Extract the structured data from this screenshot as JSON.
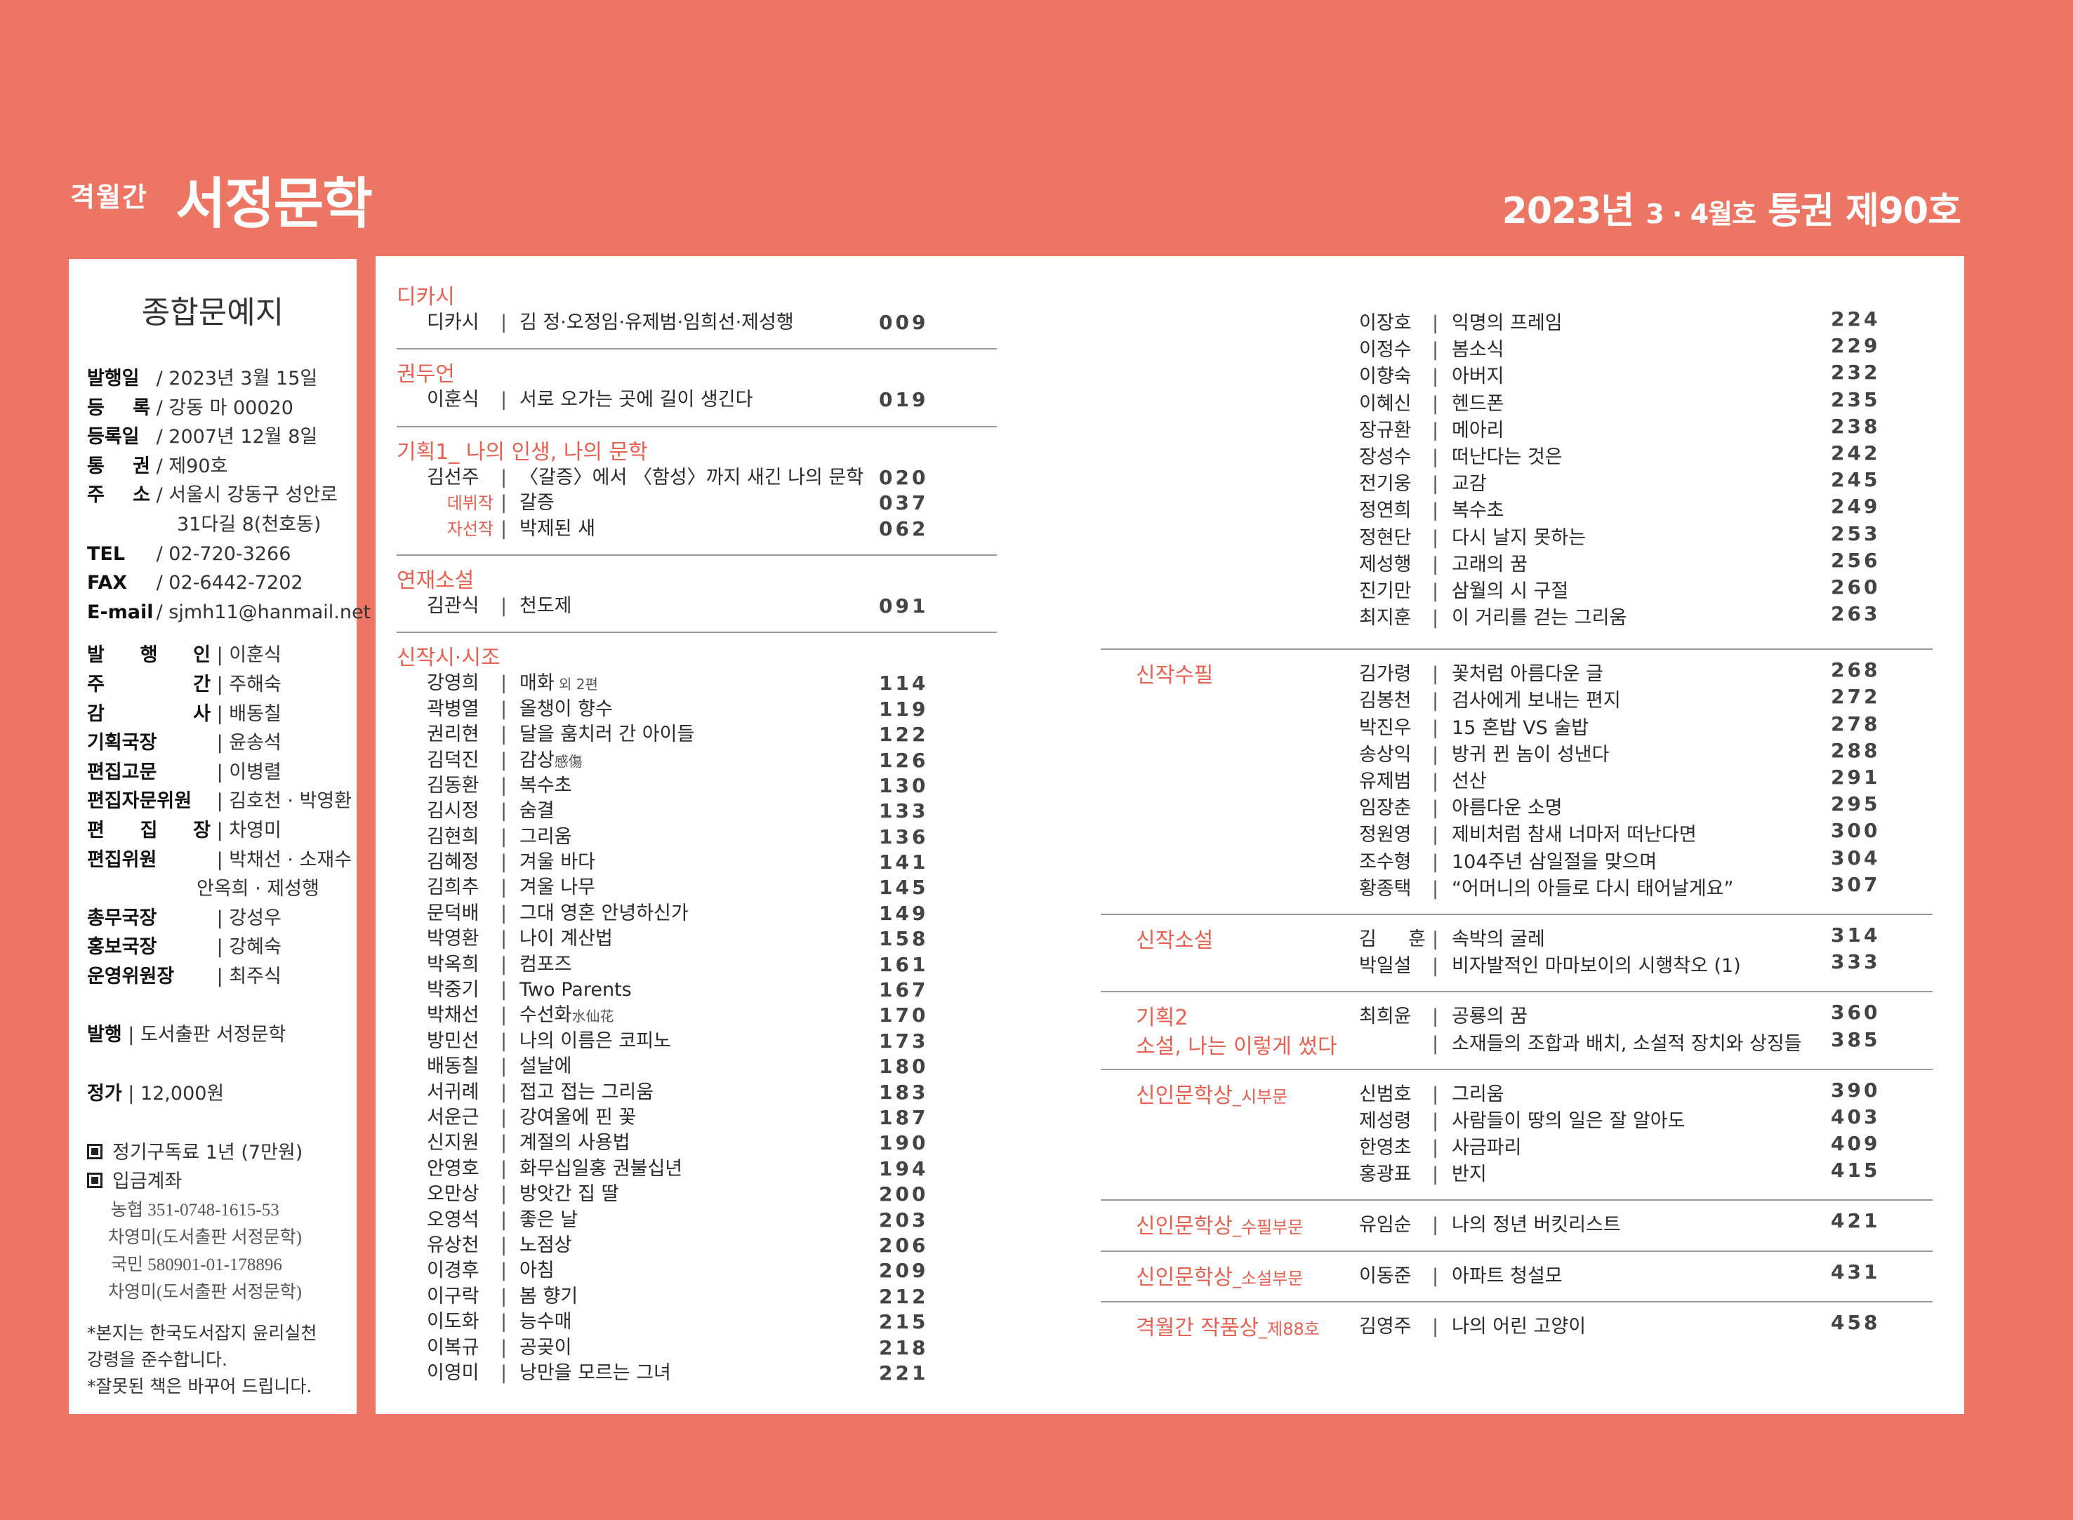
{
  "masthead": {
    "sub": "격월간",
    "title": "서정문학",
    "issue_main": "2023년",
    "issue_small": "3 · 4월호",
    "issue_rest": "통권 제90호"
  },
  "colors": {
    "background": "#ec7563",
    "accent": "#e8604f"
  },
  "left": {
    "title": "종합문예지",
    "info": [
      {
        "label": "발행일",
        "sep": "/",
        "value": "2023년 3월 15일"
      },
      {
        "label": "등 록",
        "sep": "/",
        "value": "강동 마 00020"
      },
      {
        "label": "등록일",
        "sep": "/",
        "value": "2007년 12월 8일"
      },
      {
        "label": "통 권",
        "sep": "/",
        "value": "제90호"
      },
      {
        "label": "주 소",
        "sep": "/",
        "value": "서울시 강동구 성안로",
        "cont": "31다길 8(천호동)"
      },
      {
        "label": "TEL",
        "sep": "/",
        "value": "02-720-3266"
      },
      {
        "label": "FAX",
        "sep": "/",
        "value": "02-6442-7202"
      },
      {
        "label": "E-mail",
        "sep": "/",
        "value": "sjmh11@hanmail.net"
      }
    ],
    "staff": [
      {
        "label": "발 행 인",
        "value": "이훈식"
      },
      {
        "label": "주 간",
        "value": "주해숙"
      },
      {
        "label": "감 사",
        "value": "배동칠"
      },
      {
        "label": "기획국장",
        "value": "윤송석"
      },
      {
        "label": "편집고문",
        "value": "이병렬"
      },
      {
        "label": "편집자문위원",
        "value": "김호천 · 박영환"
      },
      {
        "label": "편 집 장",
        "value": "차영미"
      },
      {
        "label": "편집위원",
        "value": "박채선 · 소재수",
        "cont": "안옥희 · 제성행"
      },
      {
        "label": "총무국장",
        "value": "강성우"
      },
      {
        "label": "홍보국장",
        "value": "강혜숙"
      },
      {
        "label": "운영위원장",
        "value": "최주식"
      }
    ],
    "publisher": {
      "label": "발행",
      "value": "도서출판 서정문학"
    },
    "price": {
      "label": "정가",
      "value": "12,000원"
    },
    "subscription": "정기구독료 1년 (7만원)",
    "account_label": "입금계좌",
    "accounts": [
      {
        "bank": "농협 351-0748-1615-53",
        "holder": "차영미(도서출판 서정문학)"
      },
      {
        "bank": "국민 580901-01-178896",
        "holder": "차영미(도서출판 서정문학)"
      }
    ],
    "notes": [
      "*본지는 한국도서잡지 윤리실천",
      " 강령을 준수합니다.",
      "*잘못된 책은 바꾸어 드립니다."
    ]
  },
  "middle": [
    {
      "title": "디카시",
      "rows": [
        {
          "name": "디카시",
          "title": "김 정·오정임·유제범·임희선·제성행",
          "page": "009"
        }
      ]
    },
    {
      "title": "권두언",
      "rows": [
        {
          "name": "이훈식",
          "title": "서로 오가는 곳에 길이 생긴다",
          "page": "019"
        }
      ]
    },
    {
      "title": "기획1_ 나의 인생, 나의 문학",
      "rows": [
        {
          "name": "김선주",
          "title": "〈갈증〉에서 〈함성〉까지 새긴 나의 문학",
          "page": "020"
        },
        {
          "name": "데뷔작",
          "accent": true,
          "title": "갈증",
          "page": "037"
        },
        {
          "name": "자선작",
          "accent": true,
          "title": "박제된 새",
          "page": "062"
        }
      ]
    },
    {
      "title": "연재소설",
      "rows": [
        {
          "name": "김관식",
          "title": "천도제",
          "page": "091"
        }
      ]
    },
    {
      "title": "신작시·시조",
      "rows": [
        {
          "name": "강영희",
          "title": "매화",
          "suffix": " 외 2편",
          "page": "114"
        },
        {
          "name": "곽병열",
          "title": "올챙이 향수",
          "page": "119"
        },
        {
          "name": "권리현",
          "title": "달을 훔치러 간 아이들",
          "page": "122"
        },
        {
          "name": "김덕진",
          "title": "감상",
          "suffix": "感傷",
          "page": "126"
        },
        {
          "name": "김동환",
          "title": "복수초",
          "page": "130"
        },
        {
          "name": "김시정",
          "title": "숨결",
          "page": "133"
        },
        {
          "name": "김현희",
          "title": "그리움",
          "page": "136"
        },
        {
          "name": "김혜정",
          "title": "겨울 바다",
          "page": "141"
        },
        {
          "name": "김희추",
          "title": "겨울 나무",
          "page": "145"
        },
        {
          "name": "문덕배",
          "title": "그대 영혼 안녕하신가",
          "page": "149"
        },
        {
          "name": "박영환",
          "title": "나이 계산법",
          "page": "158"
        },
        {
          "name": "박옥희",
          "title": "컴포즈",
          "page": "161"
        },
        {
          "name": "박중기",
          "title": "Two Parents",
          "page": "167"
        },
        {
          "name": "박채선",
          "title": "수선화",
          "suffix": "水仙花",
          "page": "170"
        },
        {
          "name": "방민선",
          "title": "나의 이름은 코피노",
          "page": "173"
        },
        {
          "name": "배동칠",
          "title": "설날에",
          "page": "180"
        },
        {
          "name": "서귀례",
          "title": "접고 접는 그리움",
          "page": "183"
        },
        {
          "name": "서운근",
          "title": "강여울에 핀 꽃",
          "page": "187"
        },
        {
          "name": "신지원",
          "title": "계절의 사용법",
          "page": "190"
        },
        {
          "name": "안영호",
          "title": "화무십일홍 권불십년",
          "page": "194"
        },
        {
          "name": "오만상",
          "title": "방앗간 집 딸",
          "page": "200"
        },
        {
          "name": "오영석",
          "title": "좋은 날",
          "page": "203"
        },
        {
          "name": "유상천",
          "title": "노점상",
          "page": "206"
        },
        {
          "name": "이경후",
          "title": "아침",
          "page": "209"
        },
        {
          "name": "이구락",
          "title": "봄 향기",
          "page": "212"
        },
        {
          "name": "이도화",
          "title": "능수매",
          "page": "215"
        },
        {
          "name": "이복규",
          "title": "공곶이",
          "page": "218"
        },
        {
          "name": "이영미",
          "title": "낭만을 모르는 그녀",
          "page": "221"
        }
      ]
    }
  ],
  "right": [
    {
      "label": "",
      "rows": [
        {
          "name": "이장호",
          "title": "익명의 프레임",
          "page": "224"
        },
        {
          "name": "이정수",
          "title": "봄소식",
          "page": "229"
        },
        {
          "name": "이향숙",
          "title": "아버지",
          "page": "232"
        },
        {
          "name": "이혜신",
          "title": "헨드폰",
          "page": "235"
        },
        {
          "name": "장규환",
          "title": "메아리",
          "page": "238"
        },
        {
          "name": "장성수",
          "title": "떠난다는 것은",
          "page": "242"
        },
        {
          "name": "전기웅",
          "title": "교감",
          "page": "245"
        },
        {
          "name": "정연희",
          "title": "복수초",
          "page": "249"
        },
        {
          "name": "정현단",
          "title": "다시 날지 못하는",
          "page": "253"
        },
        {
          "name": "제성행",
          "title": "고래의 꿈",
          "page": "256"
        },
        {
          "name": "진기만",
          "title": "삼월의 시 구절",
          "page": "260"
        },
        {
          "name": "최지훈",
          "title": "이 거리를 걷는 그리움",
          "page": "263"
        }
      ]
    },
    {
      "label": "신작수필",
      "rows": [
        {
          "name": "김가령",
          "title": "꽃처럼 아름다운 글",
          "page": "268"
        },
        {
          "name": "김봉천",
          "title": "검사에게 보내는 편지",
          "page": "272"
        },
        {
          "name": "박진우",
          "title": "15 혼밥 VS 술밥",
          "page": "278"
        },
        {
          "name": "송상익",
          "title": "방귀 뀐 놈이 성낸다",
          "page": "288"
        },
        {
          "name": "유제범",
          "title": "선산",
          "page": "291"
        },
        {
          "name": "임장춘",
          "title": "아름다운 소명",
          "page": "295"
        },
        {
          "name": "정원영",
          "title": "제비처럼 참새 너마저 떠난다면",
          "page": "300"
        },
        {
          "name": "조수형",
          "title": "104주년 삼일절을 맞으며",
          "page": "304"
        },
        {
          "name": "황종택",
          "title": "“어머니의 아들로 다시 태어날게요”",
          "page": "307"
        }
      ]
    },
    {
      "label": "신작소설",
      "rows": [
        {
          "name": "김 훈",
          "title": "속박의 굴레",
          "page": "314"
        },
        {
          "name": "박일설",
          "title": "비자발적인 마마보이의 시행착오 (1)",
          "page": "333"
        }
      ]
    },
    {
      "label": "기획2",
      "label2": "소설, 나는 이렇게 썼다",
      "rows": [
        {
          "name": "최희윤",
          "title": "공룡의 꿈",
          "page": "360"
        },
        {
          "name": "",
          "title": "소재들의 조합과 배치, 소설적 장치와 상징들",
          "page": "385"
        }
      ]
    },
    {
      "label": "신인문학상",
      "sublabel": "_시부문",
      "rows": [
        {
          "name": "신범호",
          "title": "그리움",
          "page": "390"
        },
        {
          "name": "제성령",
          "title": "사람들이 땅의 일은 잘 알아도",
          "page": "403"
        },
        {
          "name": "한영초",
          "title": "사금파리",
          "page": "409"
        },
        {
          "name": "홍광표",
          "title": "반지",
          "page": "415"
        }
      ]
    },
    {
      "label": "신인문학상",
      "sublabel": "_수필부문",
      "rows": [
        {
          "name": "유임순",
          "title": "나의 정년 버킷리스트",
          "page": "421"
        }
      ]
    },
    {
      "label": "신인문학상",
      "sublabel": "_소설부문",
      "rows": [
        {
          "name": "이동준",
          "title": "아파트 청설모",
          "page": "431"
        }
      ]
    },
    {
      "label": "격월간 작품상",
      "sublabel": "_제88호",
      "rows": [
        {
          "name": "김영주",
          "title": "나의 어린 고양이",
          "page": "458"
        }
      ]
    }
  ]
}
